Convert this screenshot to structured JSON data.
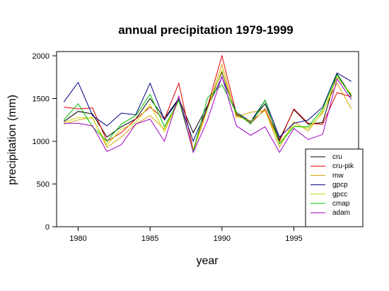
{
  "chart_data": {
    "type": "line",
    "title": "annual precipitation 1979-1999",
    "xlabel": "year",
    "ylabel": "precipitation (mm)",
    "x": [
      1979,
      1980,
      1981,
      1982,
      1983,
      1984,
      1985,
      1986,
      1987,
      1988,
      1989,
      1990,
      1991,
      1992,
      1993,
      1994,
      1995,
      1996,
      1997,
      1998,
      1999
    ],
    "xticks": [
      1980,
      1985,
      1990,
      1995
    ],
    "xtick_labels": [
      "1980",
      "1985",
      "1990",
      "1995"
    ],
    "yticks": [
      0,
      500,
      1000,
      1500,
      2000
    ],
    "ytick_labels": [
      "0",
      "500",
      "1000",
      "1500",
      "2000"
    ],
    "xlim": [
      1978.5,
      1999.5
    ],
    "ylim": [
      0,
      2050
    ],
    "grid": false,
    "legend_position": "bottom-right",
    "series": [
      {
        "name": "cru",
        "color": "#000000",
        "values": [
          1230,
          1350,
          1320,
          1050,
          1170,
          1260,
          1500,
          1270,
          1500,
          1100,
          1420,
          1810,
          1310,
          1230,
          1440,
          1020,
          1370,
          1200,
          1220,
          1790,
          1530
        ]
      },
      {
        "name": "cru-pik",
        "color": "#e00000",
        "values": [
          1400,
          1380,
          1390,
          1000,
          1100,
          1260,
          1400,
          1260,
          1680,
          900,
          1410,
          2000,
          1320,
          1210,
          1380,
          1000,
          1380,
          1210,
          1200,
          1570,
          1520
        ]
      },
      {
        "name": "mw",
        "color": "#d4a000",
        "values": [
          1200,
          1250,
          1280,
          930,
          1050,
          1200,
          1300,
          1140,
          1500,
          880,
          1380,
          1900,
          1280,
          1340,
          1360,
          930,
          1230,
          1120,
          1350,
          1680,
          1380
        ]
      },
      {
        "name": "gpcp",
        "color": "#000080",
        "values": [
          1460,
          1690,
          1300,
          1180,
          1330,
          1310,
          1680,
          1250,
          1490,
          1000,
          1400,
          1750,
          1340,
          1230,
          1480,
          1050,
          1210,
          1250,
          1400,
          1800,
          1700
        ]
      },
      {
        "name": "gpcc",
        "color": "#c8d800",
        "values": [
          1220,
          1280,
          1270,
          960,
          1140,
          1220,
          1430,
          1110,
          1480,
          900,
          1380,
          1830,
          1290,
          1240,
          1360,
          980,
          1190,
          1150,
          1330,
          1750,
          1550
        ]
      },
      {
        "name": "cmap",
        "color": "#00c000",
        "values": [
          1250,
          1440,
          1170,
          1000,
          1200,
          1300,
          1550,
          1170,
          1480,
          880,
          1510,
          1660,
          1340,
          1200,
          1480,
          970,
          1170,
          1170,
          1380,
          1780,
          1520
        ]
      },
      {
        "name": "adam",
        "color": "#a000c0",
        "values": [
          1210,
          1210,
          1180,
          880,
          960,
          1200,
          1260,
          1000,
          1530,
          870,
          1250,
          1760,
          1180,
          1070,
          1170,
          870,
          1150,
          1020,
          1080,
          1730,
          1490
        ]
      }
    ]
  }
}
